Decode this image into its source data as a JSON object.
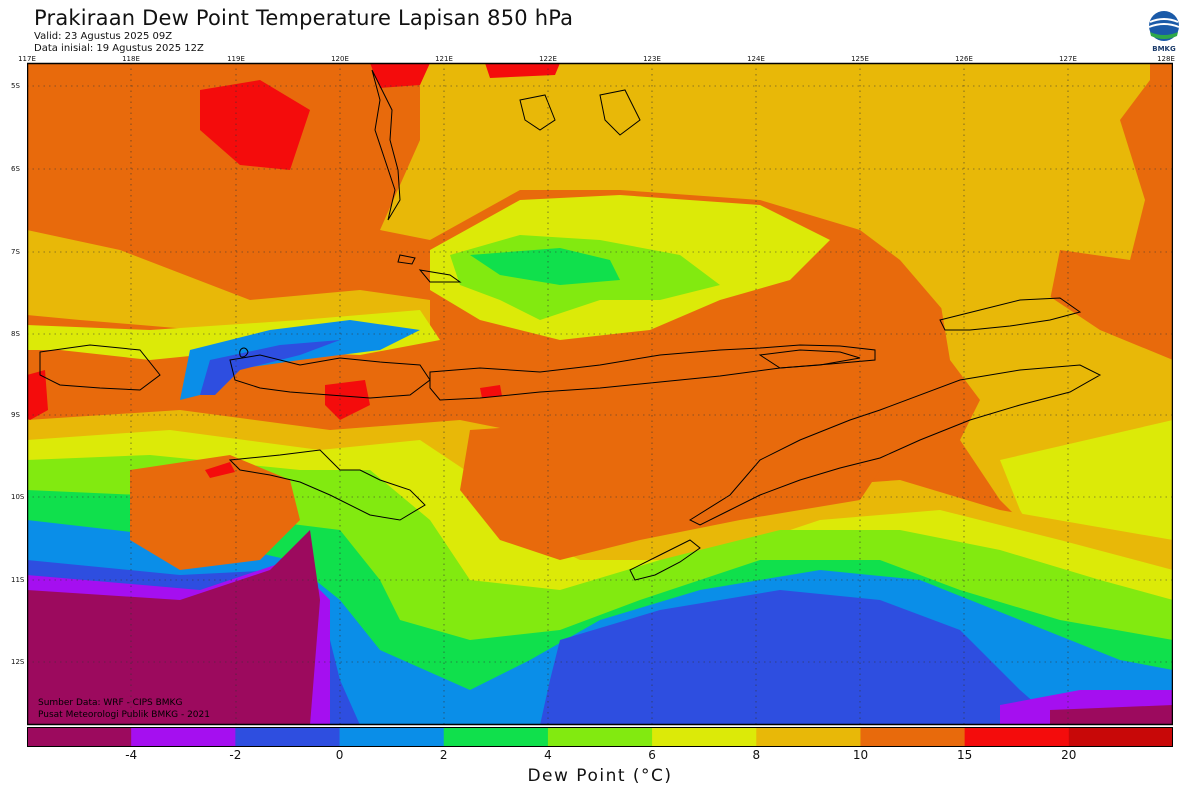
{
  "header": {
    "title": "Prakiraan Dew Point Temperature Lapisan 850 hPa",
    "valid": "Valid: 23 Agustus 2025 09Z",
    "initial": "Data inisial: 19 Agustus 2025 12Z",
    "logo_label": "BMKG"
  },
  "map": {
    "x_ticks": [
      "117E",
      "118E",
      "119E",
      "120E",
      "121E",
      "122E",
      "123E",
      "124E",
      "125E",
      "126E",
      "127E",
      "128E"
    ],
    "y_ticks": [
      "5S",
      "6S",
      "7S",
      "8S",
      "9S",
      "10S",
      "11S",
      "12S"
    ],
    "credit_source": "Sumber Data: WRF - CIPS BMKG",
    "credit_org": "Pusat Meteorologi Publik BMKG - 2021",
    "colors": {
      "lt_minus4": "#9c0a5e",
      "m4_m2": "#a50ff0",
      "m2_0": "#2e4ee0",
      "0_2": "#0a8ee8",
      "2_4": "#10e04c",
      "4_6": "#82ea10",
      "6_8": "#dcea08",
      "8_10": "#e8b808",
      "10_15": "#e86a0c",
      "15_20": "#f40c0c",
      "gt20": "#c80808"
    }
  },
  "colorbar": {
    "colors": [
      "#9c0a5e",
      "#a50ff0",
      "#2e4ee0",
      "#0a8ee8",
      "#10e04c",
      "#82ea10",
      "#dcea08",
      "#e8b808",
      "#e86a0c",
      "#f40c0c",
      "#c80808"
    ],
    "labels": [
      "-4",
      "-2",
      "0",
      "2",
      "4",
      "6",
      "8",
      "10",
      "15",
      "20"
    ],
    "title": "Dew Point (°C)"
  }
}
